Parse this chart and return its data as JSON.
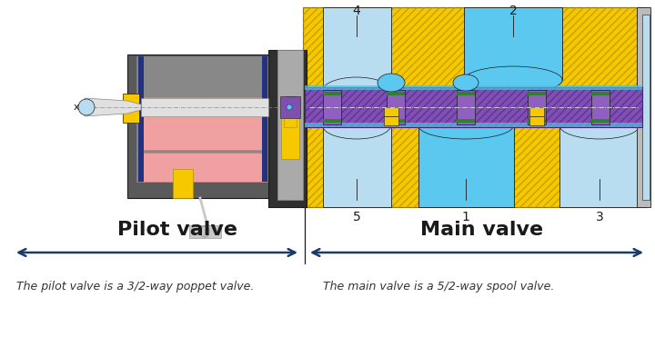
{
  "fig_width": 7.2,
  "fig_height": 3.71,
  "dpi": 100,
  "bg_color": "#ffffff",
  "pilot_label": "Pilot valve",
  "main_label": "Main valve",
  "pilot_desc": "The pilot valve is a 3/2-way poppet valve.",
  "main_desc": "The main valve is a 5/2-way spool valve.",
  "arrow_color": "#1a3a6b",
  "yellow_color": "#F5C800",
  "yellow_hatch": "#C8A000",
  "blue_light": "#B8DCF0",
  "blue_med": "#5BC8F0",
  "gray_dark": "#5A5A5A",
  "gray_med": "#888888",
  "gray_light": "#C8C8C8",
  "gray_lighter": "#E0E0E0",
  "purple_color": "#8050B0",
  "purple_dark": "#6030A0",
  "pink_color": "#F0A0A0",
  "navy_color": "#243080",
  "green_color": "#308030",
  "black_color": "#1A1A1A",
  "cyan_color": "#50C0E0"
}
